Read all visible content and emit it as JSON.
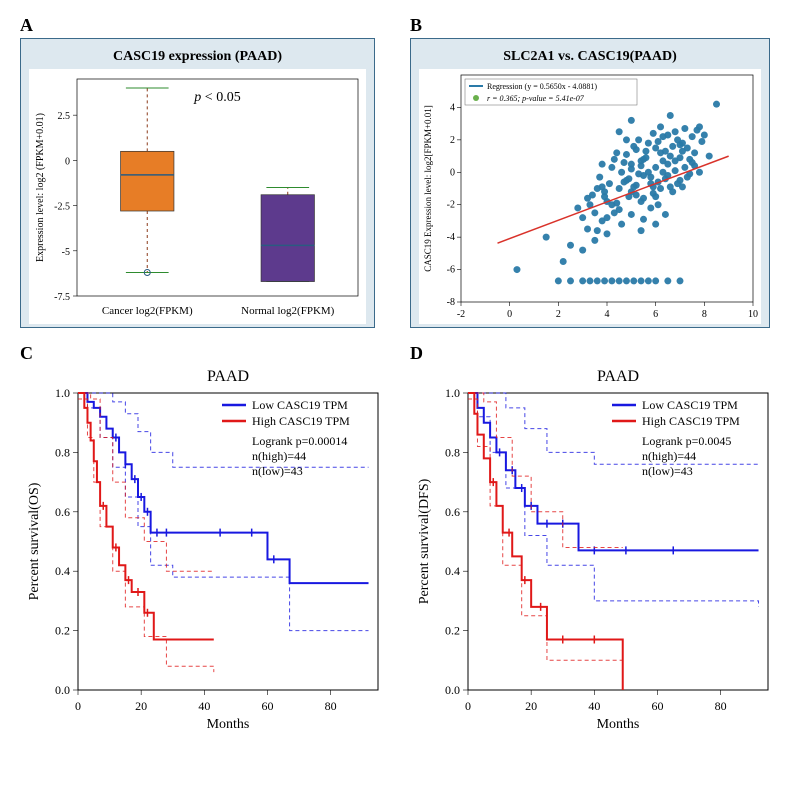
{
  "panelA": {
    "label": "A",
    "title": "CASC19 expression (PAAD)",
    "title_fontsize": 14,
    "annotation": "p < 0.05",
    "annotation_style": "italic-p",
    "ylabel": "Expression level: log2 (FPKM+0.01)",
    "ylabel_fontsize": 10,
    "ylim": [
      -7.5,
      4.5
    ],
    "yticks": [
      -7.5,
      -5,
      -2.5,
      0,
      2.5
    ],
    "categories": [
      "Cancer log2(FPKM)",
      "Normal log2(FPKM)"
    ],
    "xlabel_fontsize": 11,
    "boxes": [
      {
        "category": "Cancer log2(FPKM)",
        "q1": -2.8,
        "median": -0.8,
        "q3": 0.5,
        "whisker_low": -6.2,
        "whisker_high": 4.0,
        "fill": "#e77d26",
        "median_color": "#2a5b81",
        "whisker_color": "#8b3a1a",
        "cap_color": "#2e8b2e",
        "outliers": [
          {
            "y": -6.2,
            "marker": "o",
            "color": "#2a5b81"
          }
        ]
      },
      {
        "category": "Normal log2(FPKM)",
        "q1": -6.7,
        "median": -4.7,
        "q3": -1.9,
        "whisker_low": -6.7,
        "whisker_high": -1.5,
        "fill": "#5d3a8d",
        "median_color": "#2a5b81",
        "whisker_color": "#8b3a1a",
        "cap_color": "#2e8b2e",
        "outliers": []
      }
    ],
    "background": "#ffffff",
    "frame_bg": "#dde8ef",
    "frame_border": "#3b6a8a"
  },
  "panelB": {
    "label": "B",
    "title": "SLC2A1 vs. CASC19(PAAD)",
    "title_fontsize": 14,
    "xlabel": "",
    "ylabel": "CASC19 Expression level: log2[FPKM+0.01]",
    "ylabel_fontsize": 9,
    "xlim": [
      -2,
      10
    ],
    "ylim": [
      -8,
      6
    ],
    "xticks": [
      -2,
      0,
      2,
      4,
      6,
      8,
      10
    ],
    "yticks": [
      -8,
      -6,
      -4,
      -2,
      0,
      2,
      4
    ],
    "regression": {
      "slope": 0.565,
      "intercept": -4.0881,
      "color": "#d9322a",
      "line_width": 1.5
    },
    "legend": {
      "position": "top-left",
      "items": [
        {
          "text": "Regression (y = 0.5650x - 4.0881)",
          "marker_color": "#2a7aa8",
          "marker_type": "line"
        },
        {
          "text": "r = 0.365; p-value = 5.41e-07",
          "marker_color": "#6ab04c",
          "marker_type": "dot"
        }
      ],
      "fontsize": 8
    },
    "point_color": "#2a7aa8",
    "point_radius": 3.5,
    "points": [
      [
        5.5,
        0.8
      ],
      [
        6.2,
        1.2
      ],
      [
        4.8,
        -0.5
      ],
      [
        7.1,
        1.8
      ],
      [
        3.9,
        -1.5
      ],
      [
        5.0,
        0.2
      ],
      [
        6.5,
        0.5
      ],
      [
        4.2,
        -2.0
      ],
      [
        7.5,
        2.2
      ],
      [
        5.8,
        -0.3
      ],
      [
        6.0,
        1.5
      ],
      [
        3.5,
        -2.5
      ],
      [
        4.5,
        -1.0
      ],
      [
        7.0,
        0.9
      ],
      [
        5.2,
        -0.8
      ],
      [
        6.8,
        2.5
      ],
      [
        4.0,
        -1.8
      ],
      [
        5.5,
        -0.2
      ],
      [
        6.3,
        0.7
      ],
      [
        3.8,
        -3.0
      ],
      [
        7.3,
        1.5
      ],
      [
        5.0,
        -1.2
      ],
      [
        6.6,
        1.0
      ],
      [
        4.6,
        0.0
      ],
      [
        7.8,
        2.8
      ],
      [
        5.4,
        0.4
      ],
      [
        2.8,
        -2.2
      ],
      [
        6.1,
        -0.6
      ],
      [
        4.9,
        -1.5
      ],
      [
        7.2,
        0.3
      ],
      [
        5.7,
        1.8
      ],
      [
        3.6,
        -1.0
      ],
      [
        6.4,
        -0.4
      ],
      [
        4.3,
        -2.5
      ],
      [
        7.6,
        1.2
      ],
      [
        5.1,
        -0.9
      ],
      [
        6.9,
        2.0
      ],
      [
        4.7,
        0.6
      ],
      [
        5.9,
        -1.3
      ],
      [
        3.2,
        -3.5
      ],
      [
        7.4,
        0.8
      ],
      [
        5.3,
        -0.1
      ],
      [
        6.7,
        1.6
      ],
      [
        4.1,
        -0.7
      ],
      [
        8.0,
        2.3
      ],
      [
        5.6,
        0.9
      ],
      [
        3.0,
        -2.8
      ],
      [
        6.2,
        -1.0
      ],
      [
        4.4,
        -1.9
      ],
      [
        7.1,
        1.3
      ],
      [
        5.0,
        0.5
      ],
      [
        6.5,
        -0.2
      ],
      [
        3.4,
        -1.4
      ],
      [
        7.7,
        2.6
      ],
      [
        5.8,
        -0.7
      ],
      [
        4.8,
        1.1
      ],
      [
        6.0,
        0.3
      ],
      [
        7.0,
        -0.5
      ],
      [
        5.2,
        1.4
      ],
      [
        3.7,
        -0.3
      ],
      [
        6.3,
        2.2
      ],
      [
        4.5,
        -2.3
      ],
      [
        7.5,
        0.6
      ],
      [
        5.5,
        -1.6
      ],
      [
        2.0,
        -6.7
      ],
      [
        2.5,
        -6.7
      ],
      [
        3.0,
        -6.7
      ],
      [
        3.3,
        -6.7
      ],
      [
        3.6,
        -6.7
      ],
      [
        3.9,
        -6.7
      ],
      [
        4.2,
        -6.7
      ],
      [
        4.5,
        -6.7
      ],
      [
        4.8,
        -6.7
      ],
      [
        5.1,
        -6.7
      ],
      [
        5.4,
        -6.7
      ],
      [
        5.7,
        -6.7
      ],
      [
        6.0,
        -6.7
      ],
      [
        6.5,
        -6.7
      ],
      [
        7.0,
        -6.7
      ],
      [
        6.8,
        0.1
      ],
      [
        4.0,
        -3.8
      ],
      [
        5.9,
        2.4
      ],
      [
        3.5,
        -4.2
      ],
      [
        7.3,
        -0.3
      ],
      [
        6.1,
        1.9
      ],
      [
        4.9,
        -0.4
      ],
      [
        5.4,
        -1.8
      ],
      [
        2.5,
        -4.5
      ],
      [
        6.6,
        -0.9
      ],
      [
        7.9,
        1.9
      ],
      [
        5.0,
        -2.6
      ],
      [
        4.3,
        0.8
      ],
      [
        6.4,
        1.3
      ],
      [
        3.8,
        -0.9
      ],
      [
        7.2,
        2.7
      ],
      [
        5.7,
        0.0
      ],
      [
        6.0,
        -1.5
      ],
      [
        1.5,
        -4.0
      ],
      [
        4.6,
        -3.2
      ],
      [
        5.3,
        2.0
      ],
      [
        6.9,
        -0.7
      ],
      [
        3.3,
        -2.0
      ],
      [
        7.6,
        0.4
      ],
      [
        4.2,
        0.3
      ],
      [
        5.8,
        -2.2
      ],
      [
        6.2,
        2.8
      ],
      [
        3.9,
        -1.2
      ],
      [
        5.1,
        1.6
      ],
      [
        6.7,
        -1.2
      ],
      [
        8.2,
        1.0
      ],
      [
        4.7,
        -0.6
      ],
      [
        5.5,
        -2.9
      ],
      [
        6.3,
        0.0
      ],
      [
        7.0,
        1.7
      ],
      [
        4.4,
        1.2
      ],
      [
        5.9,
        -0.9
      ],
      [
        3.0,
        -4.8
      ],
      [
        6.5,
        2.3
      ],
      [
        5.2,
        -1.4
      ],
      [
        7.4,
        -0.1
      ],
      [
        4.0,
        -2.8
      ],
      [
        6.8,
        0.7
      ],
      [
        5.6,
        1.3
      ],
      [
        3.6,
        -3.6
      ],
      [
        7.1,
        -0.9
      ],
      [
        4.8,
        2.0
      ],
      [
        6.1,
        -2.0
      ],
      [
        3.2,
        -1.6
      ],
      [
        5.4,
        0.7
      ],
      [
        7.8,
        0.0
      ],
      [
        0.3,
        -6.0
      ],
      [
        8.5,
        4.2
      ],
      [
        2.2,
        -5.5
      ],
      [
        5.0,
        3.2
      ],
      [
        6.4,
        -2.6
      ],
      [
        4.5,
        2.5
      ],
      [
        6.0,
        -3.2
      ],
      [
        3.8,
        0.5
      ],
      [
        5.4,
        -3.6
      ],
      [
        6.6,
        3.5
      ]
    ],
    "background": "#ffffff",
    "frame_bg": "#dde8ef",
    "frame_border": "#3b6a8a"
  },
  "panelC": {
    "label": "C",
    "title": "PAAD",
    "title_fontsize": 16,
    "xlabel": "Months",
    "ylabel": "Percent survival(OS)",
    "label_fontsize": 14,
    "xlim": [
      0,
      95
    ],
    "ylim": [
      0,
      1.0
    ],
    "xticks": [
      0,
      20,
      40,
      60,
      80
    ],
    "yticks": [
      0.0,
      0.2,
      0.4,
      0.6,
      0.8,
      1.0
    ],
    "tick_fontsize": 12,
    "legend": {
      "items": [
        {
          "label": "Low CASC19 TPM",
          "color": "#1818e0"
        },
        {
          "label": "High CASC19 TPM",
          "color": "#e01818"
        }
      ],
      "stats": [
        "Logrank p=0.00014",
        "n(high)=44",
        "n(low)=43"
      ],
      "fontsize": 12
    },
    "low_curve": {
      "color": "#1818e0",
      "line_width": 2,
      "points": [
        [
          0,
          1.0
        ],
        [
          3,
          1.0
        ],
        [
          3,
          0.97
        ],
        [
          5,
          0.97
        ],
        [
          5,
          0.95
        ],
        [
          7,
          0.95
        ],
        [
          7,
          0.92
        ],
        [
          9,
          0.92
        ],
        [
          9,
          0.88
        ],
        [
          11,
          0.88
        ],
        [
          11,
          0.85
        ],
        [
          13,
          0.85
        ],
        [
          13,
          0.8
        ],
        [
          15,
          0.8
        ],
        [
          15,
          0.76
        ],
        [
          17,
          0.76
        ],
        [
          17,
          0.71
        ],
        [
          19,
          0.71
        ],
        [
          19,
          0.65
        ],
        [
          21,
          0.65
        ],
        [
          21,
          0.6
        ],
        [
          23,
          0.6
        ],
        [
          23,
          0.53
        ],
        [
          60,
          0.53
        ],
        [
          60,
          0.44
        ],
        [
          67,
          0.44
        ],
        [
          67,
          0.36
        ],
        [
          92,
          0.36
        ]
      ],
      "ci_upper": [
        [
          0,
          1.0
        ],
        [
          7,
          1.0
        ],
        [
          11,
          0.97
        ],
        [
          15,
          0.93
        ],
        [
          19,
          0.87
        ],
        [
          23,
          0.8
        ],
        [
          30,
          0.75
        ],
        [
          92,
          0.75
        ]
      ],
      "ci_lower": [
        [
          0,
          1.0
        ],
        [
          3,
          0.95
        ],
        [
          7,
          0.85
        ],
        [
          11,
          0.75
        ],
        [
          15,
          0.65
        ],
        [
          19,
          0.55
        ],
        [
          23,
          0.42
        ],
        [
          30,
          0.38
        ],
        [
          60,
          0.38
        ],
        [
          67,
          0.2
        ],
        [
          92,
          0.2
        ]
      ],
      "ticks": [
        12,
        15,
        18,
        20,
        22,
        25,
        28,
        45,
        55,
        62
      ]
    },
    "high_curve": {
      "color": "#e01818",
      "line_width": 2,
      "points": [
        [
          0,
          1.0
        ],
        [
          2,
          1.0
        ],
        [
          2,
          0.95
        ],
        [
          3,
          0.95
        ],
        [
          3,
          0.9
        ],
        [
          4,
          0.9
        ],
        [
          4,
          0.84
        ],
        [
          5,
          0.84
        ],
        [
          5,
          0.77
        ],
        [
          6,
          0.77
        ],
        [
          6,
          0.7
        ],
        [
          7,
          0.7
        ],
        [
          7,
          0.62
        ],
        [
          9,
          0.62
        ],
        [
          9,
          0.55
        ],
        [
          11,
          0.55
        ],
        [
          11,
          0.48
        ],
        [
          13,
          0.48
        ],
        [
          13,
          0.42
        ],
        [
          15,
          0.42
        ],
        [
          15,
          0.37
        ],
        [
          17,
          0.37
        ],
        [
          17,
          0.33
        ],
        [
          21,
          0.33
        ],
        [
          21,
          0.26
        ],
        [
          24,
          0.26
        ],
        [
          24,
          0.17
        ],
        [
          43,
          0.17
        ]
      ],
      "ci_upper": [
        [
          0,
          1.0
        ],
        [
          4,
          0.98
        ],
        [
          7,
          0.85
        ],
        [
          11,
          0.7
        ],
        [
          15,
          0.58
        ],
        [
          21,
          0.5
        ],
        [
          28,
          0.4
        ],
        [
          43,
          0.4
        ]
      ],
      "ci_lower": [
        [
          0,
          0.98
        ],
        [
          3,
          0.85
        ],
        [
          5,
          0.7
        ],
        [
          7,
          0.55
        ],
        [
          11,
          0.4
        ],
        [
          15,
          0.28
        ],
        [
          21,
          0.18
        ],
        [
          28,
          0.08
        ],
        [
          43,
          0.06
        ]
      ],
      "ticks": [
        8,
        12,
        16,
        19,
        22
      ]
    }
  },
  "panelD": {
    "label": "D",
    "title": "PAAD",
    "title_fontsize": 16,
    "xlabel": "Months",
    "ylabel": "Percent survival(DFS)",
    "label_fontsize": 14,
    "xlim": [
      0,
      95
    ],
    "ylim": [
      0,
      1.0
    ],
    "xticks": [
      0,
      20,
      40,
      60,
      80
    ],
    "yticks": [
      0.0,
      0.2,
      0.4,
      0.6,
      0.8,
      1.0
    ],
    "tick_fontsize": 12,
    "legend": {
      "items": [
        {
          "label": "Low CASC19 TPM",
          "color": "#1818e0"
        },
        {
          "label": "High CASC19 TPM",
          "color": "#e01818"
        }
      ],
      "stats": [
        "Logrank p=0.0045",
        "n(high)=44",
        "n(low)=43"
      ],
      "fontsize": 12
    },
    "low_curve": {
      "color": "#1818e0",
      "line_width": 2,
      "points": [
        [
          0,
          1.0
        ],
        [
          3,
          1.0
        ],
        [
          3,
          0.95
        ],
        [
          5,
          0.95
        ],
        [
          5,
          0.9
        ],
        [
          7,
          0.9
        ],
        [
          7,
          0.85
        ],
        [
          9,
          0.85
        ],
        [
          9,
          0.8
        ],
        [
          12,
          0.8
        ],
        [
          12,
          0.74
        ],
        [
          15,
          0.74
        ],
        [
          15,
          0.68
        ],
        [
          18,
          0.68
        ],
        [
          18,
          0.62
        ],
        [
          22,
          0.62
        ],
        [
          22,
          0.56
        ],
        [
          35,
          0.56
        ],
        [
          35,
          0.47
        ],
        [
          92,
          0.47
        ]
      ],
      "ci_upper": [
        [
          0,
          1.0
        ],
        [
          7,
          1.0
        ],
        [
          12,
          0.95
        ],
        [
          18,
          0.88
        ],
        [
          25,
          0.8
        ],
        [
          40,
          0.76
        ],
        [
          92,
          0.76
        ]
      ],
      "ci_lower": [
        [
          0,
          1.0
        ],
        [
          3,
          0.92
        ],
        [
          7,
          0.8
        ],
        [
          12,
          0.68
        ],
        [
          18,
          0.52
        ],
        [
          25,
          0.42
        ],
        [
          40,
          0.3
        ],
        [
          92,
          0.28
        ]
      ],
      "ticks": [
        10,
        14,
        17,
        20,
        25,
        30,
        40,
        50,
        65
      ]
    },
    "high_curve": {
      "color": "#e01818",
      "line_width": 2,
      "points": [
        [
          0,
          1.0
        ],
        [
          2,
          1.0
        ],
        [
          2,
          0.93
        ],
        [
          3,
          0.93
        ],
        [
          3,
          0.86
        ],
        [
          5,
          0.86
        ],
        [
          5,
          0.78
        ],
        [
          7,
          0.78
        ],
        [
          7,
          0.7
        ],
        [
          9,
          0.7
        ],
        [
          9,
          0.62
        ],
        [
          11,
          0.62
        ],
        [
          11,
          0.53
        ],
        [
          14,
          0.53
        ],
        [
          14,
          0.45
        ],
        [
          17,
          0.45
        ],
        [
          17,
          0.37
        ],
        [
          20,
          0.37
        ],
        [
          20,
          0.28
        ],
        [
          25,
          0.28
        ],
        [
          25,
          0.17
        ],
        [
          49,
          0.17
        ],
        [
          49,
          0.0
        ]
      ],
      "ci_upper": [
        [
          0,
          1.0
        ],
        [
          5,
          0.97
        ],
        [
          9,
          0.85
        ],
        [
          14,
          0.72
        ],
        [
          20,
          0.6
        ],
        [
          30,
          0.48
        ],
        [
          49,
          0.48
        ]
      ],
      "ci_lower": [
        [
          0,
          0.98
        ],
        [
          3,
          0.82
        ],
        [
          7,
          0.62
        ],
        [
          11,
          0.42
        ],
        [
          17,
          0.25
        ],
        [
          25,
          0.1
        ],
        [
          49,
          0.05
        ]
      ],
      "ticks": [
        8,
        13,
        18,
        23,
        30,
        40
      ]
    }
  }
}
